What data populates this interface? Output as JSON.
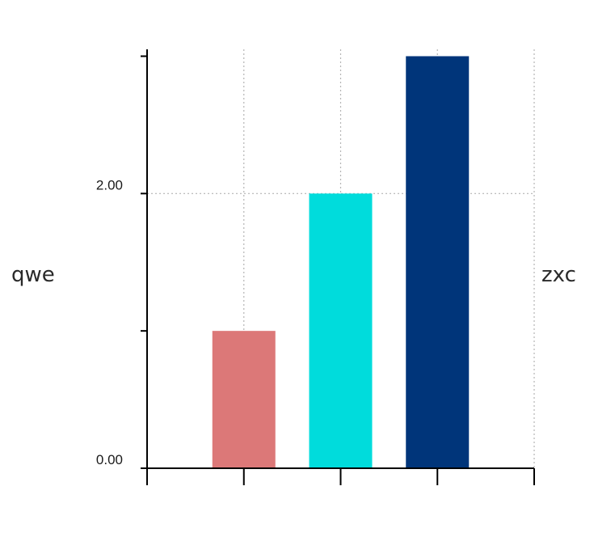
{
  "chart_data": {
    "type": "bar",
    "categories": [
      "",
      "",
      ""
    ],
    "values": [
      1,
      2,
      3
    ],
    "bar_colors": [
      "#dc7878",
      "#00dcdc",
      "#00357a"
    ],
    "ylim": [
      0,
      3.05
    ],
    "y_ticks": [
      0,
      1,
      2,
      3
    ],
    "y_tick_labels": [
      "0.00",
      "",
      "2.00",
      ""
    ],
    "ylabel": "qwe",
    "right_label": "zxc",
    "grid": "dotted",
    "axis_color": "#000000",
    "grid_color": "#b4b4b4"
  }
}
